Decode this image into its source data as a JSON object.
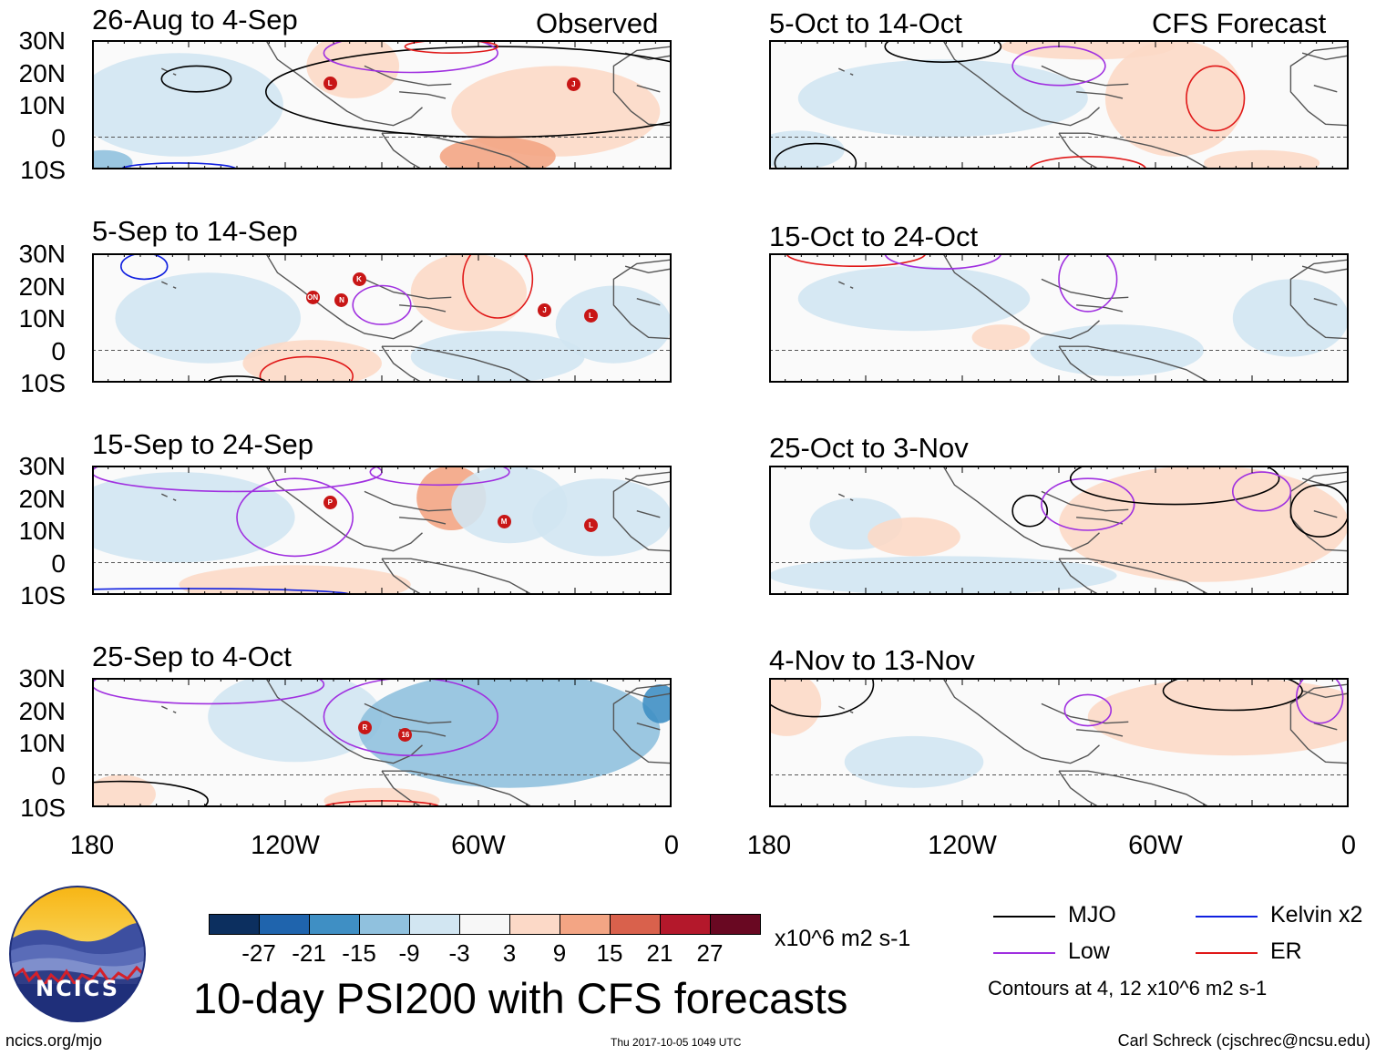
{
  "headers": {
    "left": "Observed",
    "right": "CFS Forecast"
  },
  "panels": [
    {
      "title": "26-Aug to 4-Sep",
      "storms": [
        "L",
        "J"
      ]
    },
    {
      "title": "5-Sep to 14-Sep",
      "storms": [
        "K",
        "ON",
        "N",
        "J",
        "L"
      ]
    },
    {
      "title": "15-Sep to 24-Sep",
      "storms": [
        "P",
        "M",
        "L"
      ]
    },
    {
      "title": "25-Sep to 4-Oct",
      "storms": [
        "R",
        "16"
      ]
    },
    {
      "title": "5-Oct to 14-Oct",
      "storms": []
    },
    {
      "title": "15-Oct to 24-Oct",
      "storms": []
    },
    {
      "title": "25-Oct to 3-Nov",
      "storms": []
    },
    {
      "title": "4-Nov to 13-Nov",
      "storms": []
    }
  ],
  "lat_labels": [
    "30N",
    "20N",
    "10N",
    "0",
    "10S"
  ],
  "lon_labels": [
    "180",
    "120W",
    "60W",
    "0"
  ],
  "colorbar": {
    "colors": [
      "#0c2f5f",
      "#1f64ad",
      "#3f8fc4",
      "#90c1de",
      "#d2e6f2",
      "#f7f7f7",
      "#fcd9c7",
      "#f3a584",
      "#d9614c",
      "#b4182b",
      "#690822"
    ],
    "labels": [
      "-27",
      "-21",
      "-15",
      "-9",
      "-3",
      "3",
      "9",
      "15",
      "21",
      "27"
    ],
    "units": "x10^6 m2 s-1"
  },
  "title": "10-day PSI200 with CFS forecasts",
  "legend": [
    {
      "label": "MJO",
      "color": "#000000"
    },
    {
      "label": "Kelvin x2",
      "color": "#1020e0"
    },
    {
      "label": "Low",
      "color": "#a030e0"
    },
    {
      "label": "ER",
      "color": "#e01818"
    }
  ],
  "contour_note": "Contours at 4, 12 x10^6 m2 s-1",
  "logo_text": "NCICS",
  "site": "ncics.org/mjo",
  "timestamp": "Thu 2017-10-05 1049 UTC",
  "author": "Carl Schreck (cjschrec@ncsu.edu)"
}
